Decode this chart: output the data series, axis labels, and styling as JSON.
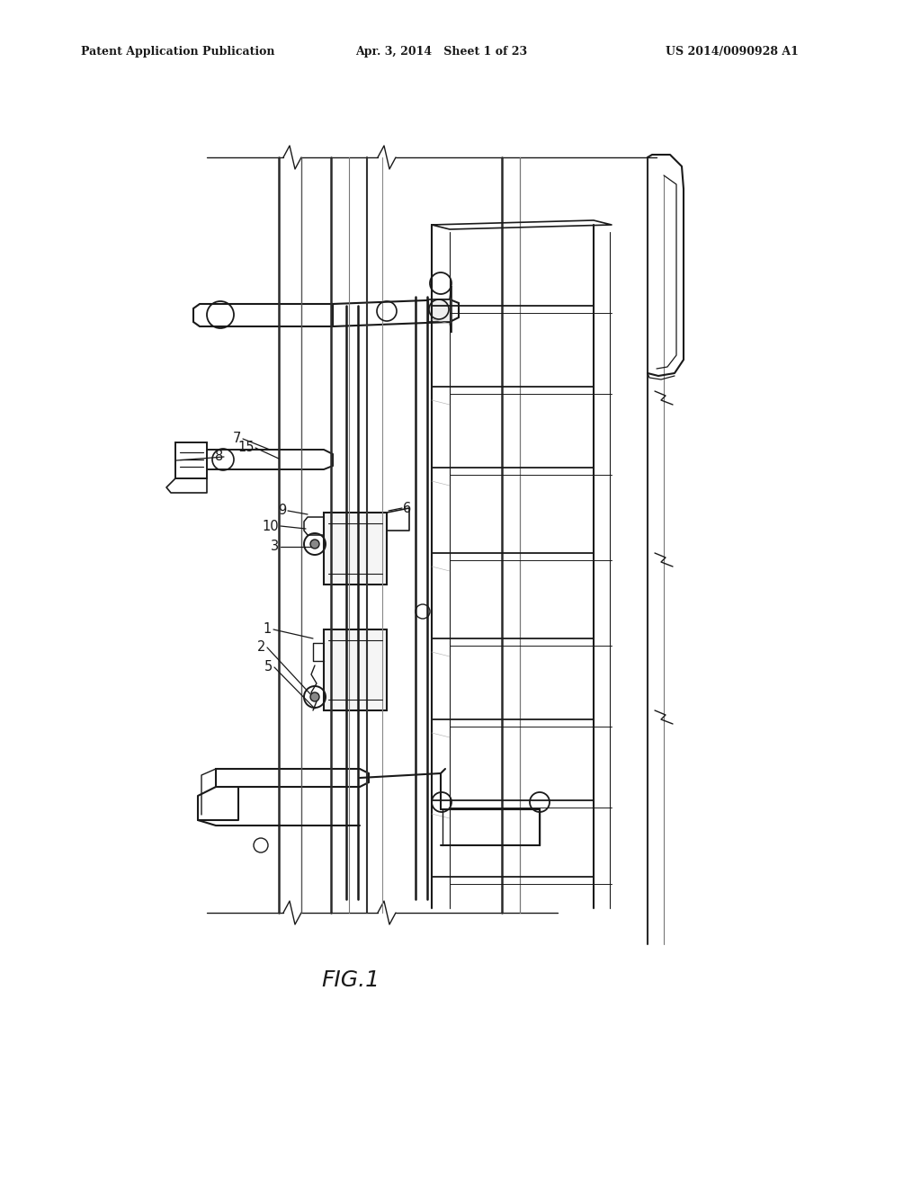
{
  "bg_color": "#ffffff",
  "line_color": "#1a1a1a",
  "header_left": "Patent Application Publication",
  "header_center": "Apr. 3, 2014   Sheet 1 of 23",
  "header_right": "US 2014/0090928 A1",
  "fig_label": "FIG.1"
}
